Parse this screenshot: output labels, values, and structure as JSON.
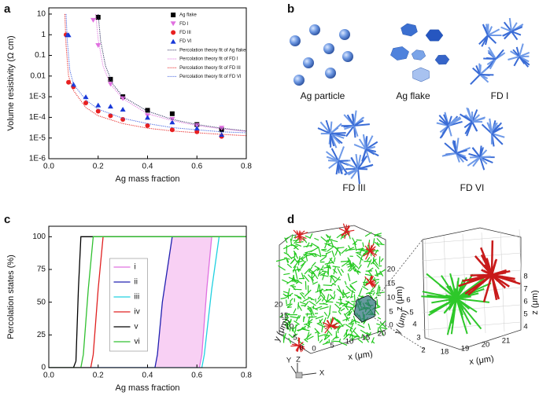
{
  "chart_data": [
    {
      "type": "scatter",
      "label": "a",
      "ylog": true,
      "x_label": "Ag mass fraction",
      "y_label": "Volume resistivity (Ω cm)",
      "xlim": [
        0,
        0.8
      ],
      "xticks": [
        {
          "value": 0,
          "label": "0.0"
        },
        0.2,
        0.4,
        0.6,
        0.8
      ],
      "ylim": [
        1e-06,
        20
      ],
      "yticks": [
        {
          "value": 1e-06,
          "label": "1E-6"
        },
        {
          "value": 1e-05,
          "label": "1E-5"
        },
        {
          "value": 0.0001,
          "label": "1E-4"
        },
        {
          "value": 0.001,
          "label": "1E-3"
        },
        0.01,
        0.1,
        1,
        10
      ],
      "legend": "upper right",
      "series": [
        {
          "name": "Ag flake",
          "color": "#000000",
          "marker": "square",
          "x": [
            0.2,
            0.25,
            0.3,
            0.4,
            0.5,
            0.6,
            0.7
          ],
          "values": [
            7,
            0.007,
            0.001,
            0.00022,
            0.00015,
            4.5e-05,
            2.5e-05
          ]
        },
        {
          "name": "FD I",
          "color": "#e070e0",
          "marker": "triangle-down",
          "x": [
            0.18,
            0.2,
            0.25,
            0.3,
            0.4,
            0.5,
            0.6,
            0.7
          ],
          "values": [
            5,
            0.3,
            0.004,
            0.0008,
            0.00012,
            8e-05,
            4e-05,
            3e-05
          ]
        },
        {
          "name": "FD III",
          "color": "#e82020",
          "marker": "circle",
          "x": [
            0.07,
            0.08,
            0.1,
            0.15,
            0.2,
            0.25,
            0.3,
            0.4,
            0.5,
            0.6,
            0.7
          ],
          "values": [
            1,
            0.005,
            0.003,
            0.0005,
            0.0002,
            0.00012,
            8e-05,
            4e-05,
            2.5e-05,
            2e-05,
            1.2e-05
          ]
        },
        {
          "name": "FD VI",
          "color": "#1838d8",
          "marker": "triangle-up",
          "x": [
            0.075,
            0.08,
            0.1,
            0.15,
            0.2,
            0.25,
            0.3,
            0.4,
            0.5,
            0.6,
            0.7
          ],
          "values": [
            1,
            1,
            0.004,
            0.001,
            0.0004,
            0.00035,
            0.00025,
            0.0001,
            6e-05,
            3e-05,
            1.5e-05
          ]
        },
        {
          "name": "Percolation theory fit of Ag flake",
          "color": "#303060",
          "style": "dotted",
          "x": [
            0.2,
            0.21,
            0.23,
            0.26,
            0.3,
            0.4,
            0.5,
            0.6,
            0.7,
            0.8
          ],
          "values": [
            10,
            0.5,
            0.03,
            0.004,
            0.001,
            0.0002,
            8e-05,
            4.5e-05,
            3e-05,
            2.2e-05
          ]
        },
        {
          "name": "Percolation theory fit of FD I",
          "color": "#e070e0",
          "style": "dotted",
          "x": [
            0.19,
            0.2,
            0.22,
            0.25,
            0.3,
            0.4,
            0.5,
            0.6,
            0.7,
            0.8
          ],
          "values": [
            10,
            0.6,
            0.03,
            0.004,
            0.0008,
            0.00015,
            7e-05,
            4e-05,
            2.8e-05,
            2.1e-05
          ]
        },
        {
          "name": "Percolation theory fit of FD III",
          "color": "#e82020",
          "style": "dotted",
          "x": [
            0.065,
            0.07,
            0.08,
            0.1,
            0.15,
            0.2,
            0.3,
            0.4,
            0.5,
            0.6,
            0.7,
            0.8
          ],
          "values": [
            10,
            0.3,
            0.01,
            0.002,
            0.0003,
            0.00012,
            5e-05,
            3e-05,
            2.2e-05,
            1.8e-05,
            1.5e-05,
            1.3e-05
          ]
        },
        {
          "name": "Percolation theory fit of FD VI",
          "color": "#4060e0",
          "style": "dotted",
          "x": [
            0.07,
            0.075,
            0.085,
            0.1,
            0.15,
            0.2,
            0.3,
            0.4,
            0.5,
            0.6,
            0.7,
            0.8
          ],
          "values": [
            10,
            0.5,
            0.02,
            0.004,
            0.0007,
            0.00025,
            9e-05,
            5e-05,
            3.2e-05,
            2.5e-05,
            2e-05,
            1.8e-05
          ]
        }
      ]
    },
    {
      "type": "line",
      "label": "c",
      "x_label": "Ag mass fraction",
      "y_label": "Percolation states (%)",
      "xlim": [
        0,
        0.8
      ],
      "xticks": [
        {
          "value": 0,
          "label": "0.0"
        },
        0.2,
        0.4,
        0.6,
        0.8
      ],
      "ylim": [
        0,
        108
      ],
      "yticks": [
        0,
        25,
        50,
        75,
        100
      ],
      "legend": "center",
      "fill_between": [
        0,
        1
      ],
      "fill_color": "#f8d0f4",
      "series": [
        {
          "name": "i",
          "color": "#e070e0",
          "x": [
            0,
            0.61,
            0.62,
            0.64,
            0.66,
            0.8
          ],
          "values": [
            0,
            0,
            10,
            60,
            100,
            100
          ]
        },
        {
          "name": "ii",
          "color": "#2020b0",
          "x": [
            0,
            0.43,
            0.44,
            0.46,
            0.5,
            0.8
          ],
          "values": [
            0,
            0,
            10,
            50,
            100,
            100
          ]
        },
        {
          "name": "iii",
          "color": "#20d0e0",
          "x": [
            0,
            0.62,
            0.63,
            0.66,
            0.69,
            0.8
          ],
          "values": [
            0,
            0,
            10,
            60,
            100,
            100
          ]
        },
        {
          "name": "iv",
          "color": "#e02020",
          "x": [
            0,
            0.17,
            0.18,
            0.2,
            0.22,
            0.8
          ],
          "values": [
            0,
            0,
            10,
            60,
            100,
            100
          ]
        },
        {
          "name": "v",
          "color": "#000000",
          "x": [
            0,
            0.1,
            0.11,
            0.12,
            0.13,
            0.8
          ],
          "values": [
            0,
            0,
            5,
            60,
            100,
            100
          ]
        },
        {
          "name": "vi",
          "color": "#30c030",
          "x": [
            0,
            0.13,
            0.14,
            0.16,
            0.18,
            0.8
          ],
          "values": [
            0,
            0,
            10,
            60,
            100,
            100
          ]
        }
      ]
    }
  ],
  "panel_b": {
    "label": "b",
    "items": [
      "Ag particle",
      "Ag flake",
      "FD I",
      "FD III",
      "FD VI"
    ]
  },
  "panel_d": {
    "label": "d",
    "left": {
      "x_ticks": [
        "0",
        "5",
        "10",
        "15",
        "20"
      ],
      "y_ticks": [
        "20",
        "15",
        "10",
        "5",
        "0"
      ],
      "z_ticks": [
        "20",
        "15",
        "10",
        "5",
        "0"
      ],
      "x_label": "x (μm)",
      "y_label": "y (μm)",
      "z_label": "z (μm)"
    },
    "right": {
      "x_ticks": [
        "18",
        "19",
        "20",
        "21"
      ],
      "y_ticks": [
        "6",
        "5",
        "4",
        "3",
        "2"
      ],
      "z_ticks": [
        "8",
        "7",
        "6",
        "5",
        "4"
      ],
      "x_label": "x (μm)",
      "y_label": "y (μm)",
      "z_label": "z (μm)"
    },
    "axes": [
      "Y",
      "Z",
      "X"
    ]
  }
}
